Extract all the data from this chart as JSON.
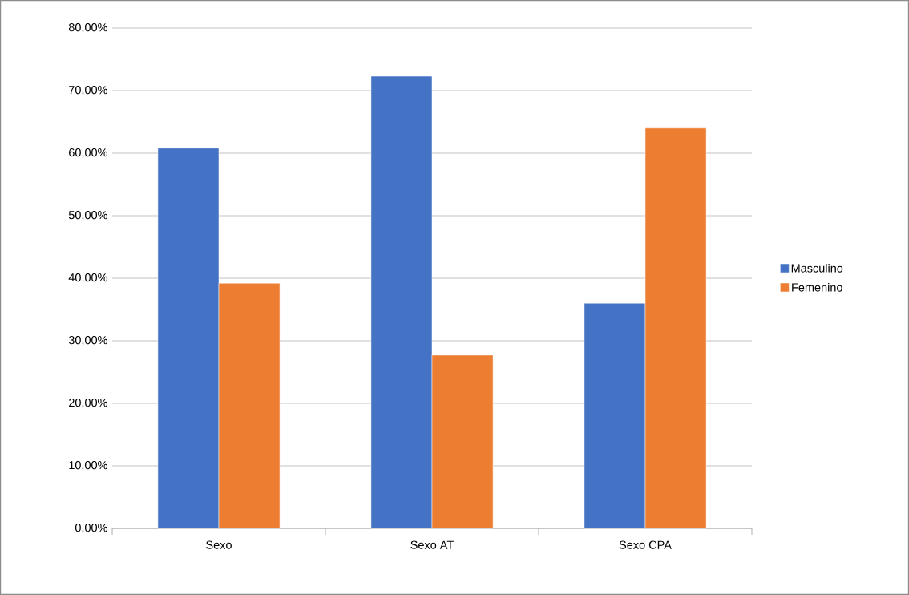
{
  "chart_data": {
    "type": "bar",
    "categories": [
      "Sexo",
      "Sexo AT",
      "Sexo CPA"
    ],
    "series": [
      {
        "name": "Masculino",
        "color": "#4472c4",
        "values": [
          60.8,
          72.3,
          36.0
        ]
      },
      {
        "name": "Femenino",
        "color": "#ed7d31",
        "values": [
          39.2,
          27.7,
          64.0
        ]
      }
    ],
    "ylim": [
      0,
      80
    ],
    "yticks": [
      {
        "value": 0,
        "label": "0,00%"
      },
      {
        "value": 10,
        "label": "10,00%"
      },
      {
        "value": 20,
        "label": "20,00%"
      },
      {
        "value": 30,
        "label": "30,00%"
      },
      {
        "value": 40,
        "label": "40,00%"
      },
      {
        "value": 50,
        "label": "50,00%"
      },
      {
        "value": 60,
        "label": "60,00%"
      },
      {
        "value": 70,
        "label": "70,00%"
      },
      {
        "value": 80,
        "label": "80,00%"
      }
    ],
    "grid": "y",
    "legend": "right"
  }
}
